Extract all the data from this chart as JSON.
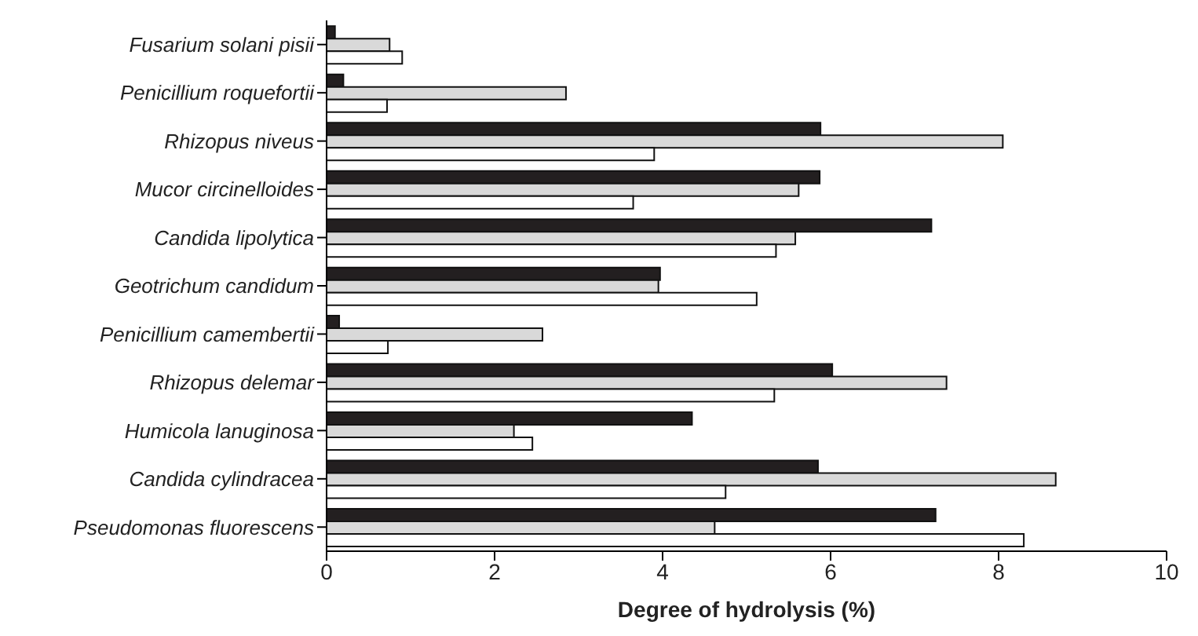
{
  "chart_data": {
    "type": "bar",
    "orientation": "horizontal",
    "xlabel": "Degree of hydrolysis (%)",
    "categories": [
      "Fusarium solani pisii",
      "Penicillium roquefortii",
      "Rhizopus niveus",
      "Mucor circinelloides",
      "Candida lipolytica",
      "Geotrichum candidum",
      "Penicillium camembertii",
      "Rhizopus delemar",
      "Humicola lanuginosa",
      "Candida cylindracea",
      "Pseudomonas fluorescens"
    ],
    "series": [
      {
        "color": "#231f20",
        "values": [
          0.1,
          0.2,
          5.88,
          5.87,
          7.2,
          3.97,
          0.15,
          6.02,
          4.35,
          5.85,
          7.25
        ]
      },
      {
        "color": "#d9d9d9",
        "values": [
          0.75,
          2.85,
          8.05,
          5.62,
          5.58,
          3.95,
          2.57,
          7.38,
          2.23,
          8.68,
          4.62
        ]
      },
      {
        "color": "#ffffff",
        "values": [
          0.9,
          0.72,
          3.9,
          3.65,
          5.35,
          5.12,
          0.73,
          5.33,
          2.45,
          4.75,
          8.3
        ]
      }
    ],
    "xlim": [
      0,
      10
    ],
    "xticks": [
      0,
      2,
      4,
      6,
      8,
      10
    ],
    "grid": false,
    "legend": false
  }
}
